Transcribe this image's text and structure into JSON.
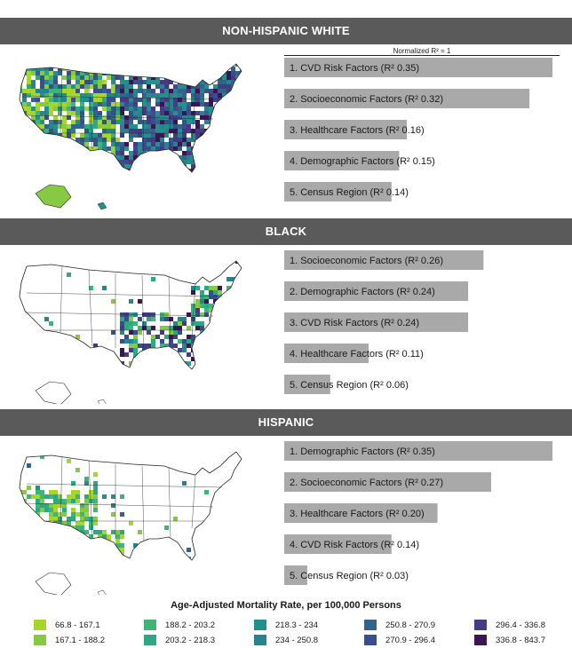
{
  "panels": [
    {
      "header": "NON-HISPANIC WHITE",
      "normalized_label": "Normalized R² = 1",
      "bars": [
        {
          "label": "1. CVD Risk Factors (R² 0.35)",
          "value": 0.35
        },
        {
          "label": "2. Socioeconomic Factors (R² 0.32)",
          "value": 0.32
        },
        {
          "label": "3. Healthcare Factors (R² 0.16)",
          "value": 0.16
        },
        {
          "label": "4. Demographic Factors (R² 0.15)",
          "value": 0.15
        },
        {
          "label": "5. Census Region (R² 0.14)",
          "value": 0.14
        }
      ]
    },
    {
      "header": "BLACK",
      "bars": [
        {
          "label": "1. Socioeconomic Factors (R² 0.26)",
          "value": 0.26
        },
        {
          "label": "2. Demographic Factors (R² 0.24)",
          "value": 0.24
        },
        {
          "label": "3. CVD Risk Factors (R² 0.24)",
          "value": 0.24
        },
        {
          "label": "4. Healthcare Factors (R² 0.11)",
          "value": 0.11
        },
        {
          "label": "5. Census Region (R² 0.06)",
          "value": 0.06
        }
      ]
    },
    {
      "header": "HISPANIC",
      "bars": [
        {
          "label": "1. Demographic Factors (R² 0.35)",
          "value": 0.35
        },
        {
          "label": "2. Socioeconomic Factors (R² 0.27)",
          "value": 0.27
        },
        {
          "label": "3. Healthcare Factors (R² 0.20)",
          "value": 0.2
        },
        {
          "label": "4. CVD Risk Factors (R² 0.14)",
          "value": 0.14
        },
        {
          "label": "5. Census Region (R² 0.03)",
          "value": 0.03
        }
      ]
    }
  ],
  "legend": {
    "title": "Age-Adjusted Mortality Rate, per 100,000 Persons",
    "bins": [
      {
        "label": "66.8 - 167.1",
        "color": "#a6d52e"
      },
      {
        "label": "167.1 - 188.2",
        "color": "#86c943"
      },
      {
        "label": "188.2 - 203.2",
        "color": "#3fb476"
      },
      {
        "label": "203.2 - 218.3",
        "color": "#2ea883"
      },
      {
        "label": "218.3 - 234",
        "color": "#23908c"
      },
      {
        "label": "234 - 250.8",
        "color": "#27838d"
      },
      {
        "label": "250.8 - 270.9",
        "color": "#31638d"
      },
      {
        "label": "270.9 - 296.4",
        "color": "#3b4e8c"
      },
      {
        "label": "296.4 - 336.8",
        "color": "#473a84"
      },
      {
        "label": "336.8 - 843.7",
        "color": "#3d1452"
      }
    ]
  },
  "bar_color": "#a9a9a9",
  "chart_data": [
    {
      "type": "bar",
      "title": "NON-HISPANIC WHITE",
      "categories": [
        "1. CVD Risk Factors",
        "2. Socioeconomic Factors",
        "3. Healthcare Factors",
        "4. Demographic Factors",
        "5. Census Region"
      ],
      "values": [
        0.35,
        0.32,
        0.16,
        0.15,
        0.14
      ]
    },
    {
      "type": "bar",
      "title": "BLACK",
      "categories": [
        "1. Socioeconomic Factors",
        "2. Demographic Factors",
        "3. CVD Risk Factors",
        "4. Healthcare Factors",
        "5. Census Region"
      ],
      "values": [
        0.26,
        0.24,
        0.24,
        0.11,
        0.06
      ]
    },
    {
      "type": "bar",
      "title": "HISPANIC",
      "categories": [
        "1. Demographic Factors",
        "2. Socioeconomic Factors",
        "3. Healthcare Factors",
        "4. CVD Risk Factors",
        "5. Census Region"
      ],
      "values": [
        0.35,
        0.27,
        0.2,
        0.14,
        0.03
      ]
    }
  ]
}
